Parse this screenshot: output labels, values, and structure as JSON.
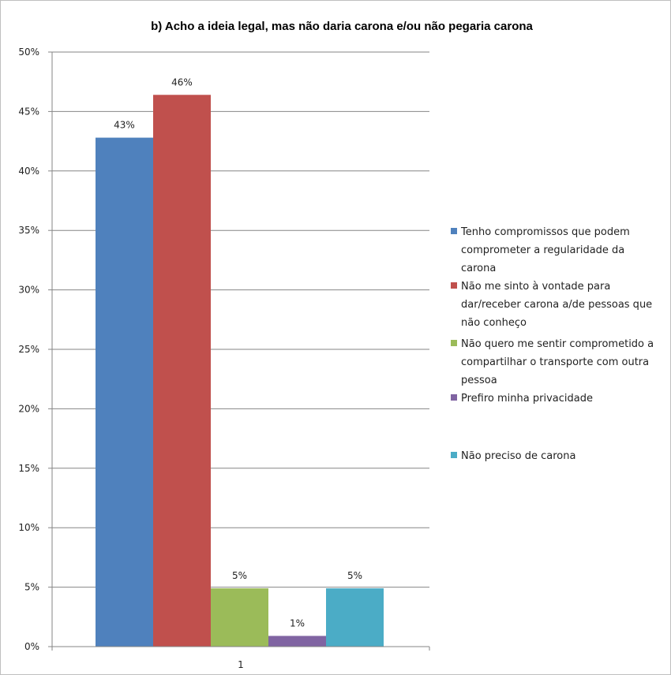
{
  "chart_data": {
    "type": "bar",
    "title": "b) Acho a ideia legal, mas não daria carona e/ou não pegaria carona",
    "categories": [
      "1"
    ],
    "ylim": [
      0,
      50
    ],
    "ytick_labels": [
      "0%",
      "5%",
      "10%",
      "15%",
      "20%",
      "25%",
      "30%",
      "35%",
      "40%",
      "45%",
      "50%"
    ],
    "grid": true,
    "legend_position": "right",
    "series": [
      {
        "name": "Tenho compromissos que podem comprometer a regularidade da carona",
        "legend_lines": [
          "Tenho compromissos que podem",
          "comprometer a regularidade da",
          "carona"
        ],
        "values": [
          42.8
        ],
        "data_label": "43%",
        "color": "#4f81bd"
      },
      {
        "name": "Não me sinto à vontade para dar/receber carona a/de pessoas que não conheço",
        "legend_lines": [
          "Não me sinto à vontade para",
          "dar/receber carona a/de pessoas que",
          "não conheço"
        ],
        "values": [
          46.4
        ],
        "data_label": "46%",
        "color": "#c0504d"
      },
      {
        "name": "Não quero me sentir comprometido a compartilhar o transporte com outra pessoa",
        "legend_lines": [
          "Não quero me sentir comprometido a",
          "compartilhar o transporte com outra",
          "pessoa"
        ],
        "values": [
          4.9
        ],
        "data_label": "5%",
        "color": "#9bbb59"
      },
      {
        "name": "Prefiro minha privacidade",
        "legend_lines": [
          "Prefiro minha privacidade"
        ],
        "values": [
          0.9
        ],
        "data_label": "1%",
        "color": "#8064a2"
      },
      {
        "name": "Não preciso de carona",
        "legend_lines": [
          "Não preciso de carona"
        ],
        "values": [
          4.9
        ],
        "data_label": "5%",
        "color": "#4bacc6"
      }
    ]
  }
}
